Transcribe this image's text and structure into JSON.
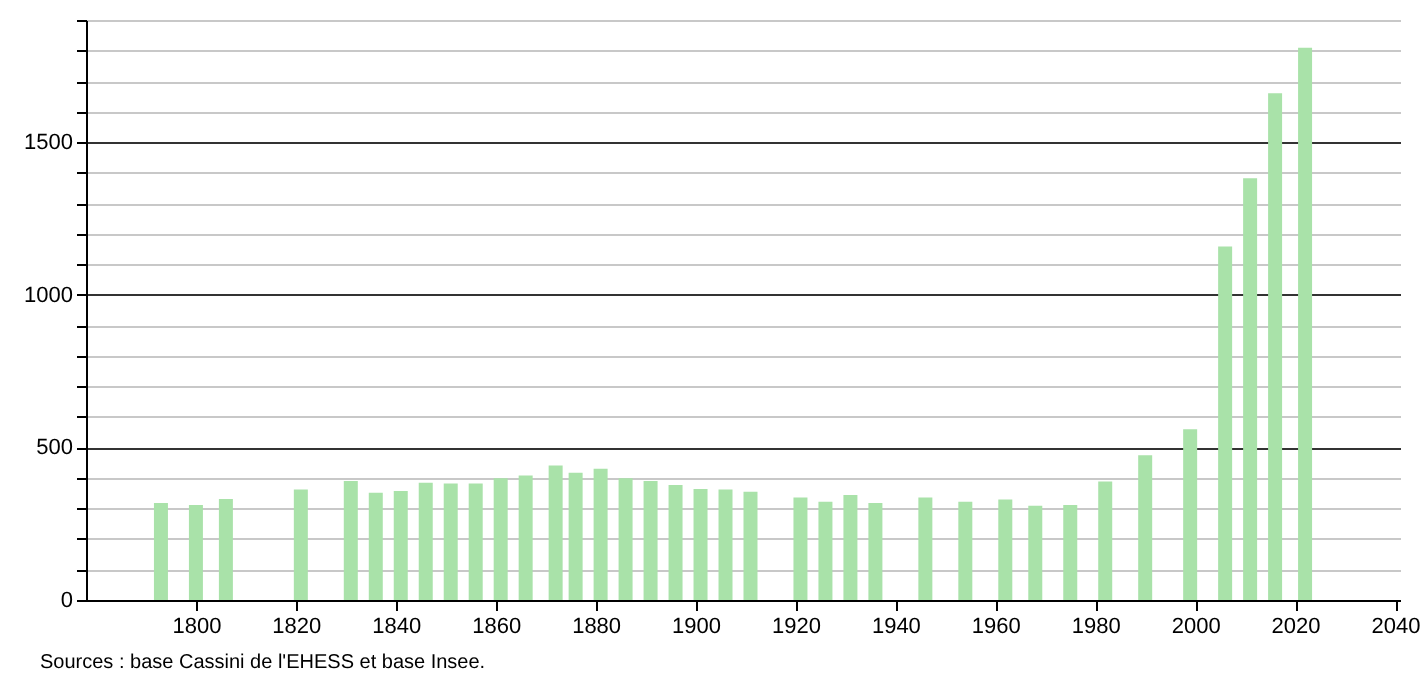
{
  "chart_data": {
    "type": "bar",
    "annotations": [
      "Sources : base Cassini de l'EHESS et base Insee."
    ],
    "x": [
      1793,
      1800,
      1806,
      1821,
      1831,
      1836,
      1841,
      1846,
      1851,
      1856,
      1861,
      1866,
      1872,
      1876,
      1881,
      1886,
      1891,
      1896,
      1901,
      1906,
      1911,
      1921,
      1926,
      1931,
      1936,
      1946,
      1954,
      1962,
      1968,
      1975,
      1982,
      1990,
      1999,
      2006,
      2011,
      2016,
      2021,
      2022
    ],
    "values": [
      318,
      311,
      331,
      362,
      390,
      351,
      357,
      384,
      382,
      382,
      399,
      408,
      441,
      417,
      430,
      399,
      390,
      377,
      364,
      362,
      355,
      336,
      322,
      344,
      318,
      336,
      322,
      329,
      309,
      311,
      388,
      474,
      559,
      1158,
      1382,
      1660,
      null,
      1809
    ],
    "color": "#a9e2a9",
    "xlim": [
      1778,
      2041
    ],
    "xticks": [
      1800,
      1820,
      1840,
      1860,
      1880,
      1900,
      1920,
      1940,
      1960,
      1980,
      2000,
      2020,
      2040
    ],
    "ylim": [
      0,
      1900
    ],
    "yticks": [
      0,
      {
        "value": 100,
        "label": null
      },
      {
        "value": 200,
        "label": null
      },
      {
        "value": 300,
        "label": null
      },
      {
        "value": 400,
        "label": null
      },
      500,
      {
        "value": 600,
        "label": null
      },
      {
        "value": 700,
        "label": null
      },
      {
        "value": 800,
        "label": null
      },
      {
        "value": 900,
        "label": null
      },
      1000,
      {
        "value": 1100,
        "label": null
      },
      {
        "value": 1200,
        "label": null
      },
      {
        "value": 1300,
        "label": null
      },
      {
        "value": 1400,
        "label": null
      },
      1500,
      {
        "value": 1600,
        "label": null
      },
      {
        "value": 1700,
        "label": null
      },
      {
        "value": 1800,
        "label": null
      },
      {
        "value": 1900,
        "label": null
      }
    ],
    "grid": "y"
  }
}
